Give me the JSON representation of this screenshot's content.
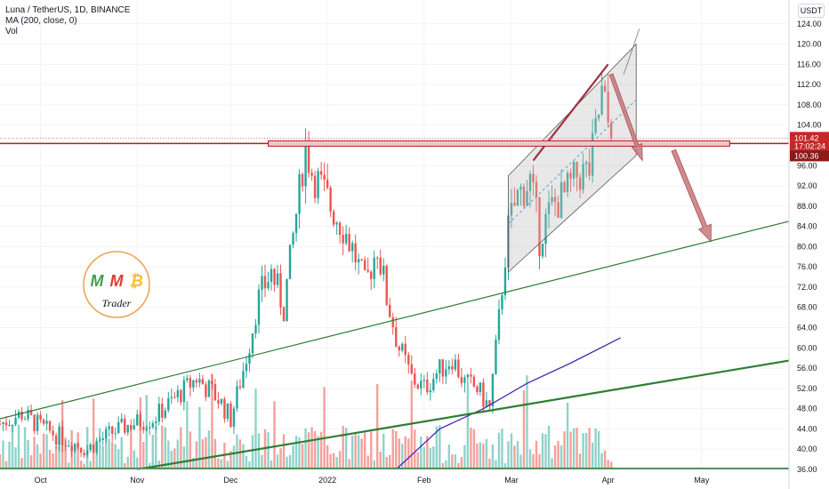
{
  "legend": {
    "symbol": "Luna / TetherUS, 1D, BINANCE",
    "ma": "MA (200, close, 0)",
    "vol": "Vol"
  },
  "currency": "USDT",
  "price_tags": {
    "current": "101.42",
    "countdown": "17:02:24",
    "level": "100.36"
  },
  "colors": {
    "up": "#26a69a",
    "down": "#ef5350",
    "vol_up": "#8fd3c9",
    "vol_down": "#f4a09c",
    "ma": "#3f2bb5",
    "trend": "#2e7d32",
    "resistance": "#b71c1c",
    "channel_fill": "#bdbdbd",
    "arrow": "#c9757a",
    "tag_red": "#c62828"
  },
  "logo": {
    "letters": [
      "M",
      "M",
      "₿"
    ],
    "text": "Trader"
  },
  "chart_data": {
    "type": "candlestick",
    "ylim": [
      36,
      128
    ],
    "y_ticks": [
      "124.00",
      "120.00",
      "116.00",
      "112.00",
      "108.00",
      "104.00",
      "96.00",
      "92.00",
      "88.00",
      "84.00",
      "80.00",
      "76.00",
      "72.00",
      "68.00",
      "64.00",
      "60.00",
      "56.00",
      "52.00",
      "48.00",
      "44.00",
      "40.00",
      "36.00"
    ],
    "x_ticks": [
      "Oct",
      "Nov",
      "Dec",
      "2022",
      "Feb",
      "Mar",
      "Apr",
      "May"
    ],
    "x_tick_dates": [
      "2021-10-01",
      "2021-11-01",
      "2021-12-01",
      "2022-01-01",
      "2022-02-01",
      "2022-03-01",
      "2022-04-01",
      "2022-05-01"
    ],
    "date_range": [
      "2021-09-18",
      "2022-05-29"
    ],
    "series_close": [
      [
        "2021-09-18",
        45
      ],
      [
        "2021-09-25",
        47
      ],
      [
        "2021-10-02",
        44
      ],
      [
        "2021-10-09",
        42
      ],
      [
        "2021-10-16",
        40
      ],
      [
        "2021-10-23",
        43
      ],
      [
        "2021-10-30",
        45
      ],
      [
        "2021-11-06",
        46
      ],
      [
        "2021-11-13",
        50
      ],
      [
        "2021-11-20",
        54
      ],
      [
        "2021-11-27",
        50
      ],
      [
        "2021-12-01",
        46
      ],
      [
        "2021-12-06",
        58
      ],
      [
        "2021-12-10",
        70
      ],
      [
        "2021-12-14",
        75
      ],
      [
        "2021-12-18",
        68
      ],
      [
        "2021-12-21",
        82
      ],
      [
        "2021-12-25",
        100
      ],
      [
        "2021-12-27",
        95
      ],
      [
        "2022-01-02",
        88
      ],
      [
        "2022-01-06",
        84
      ],
      [
        "2022-01-10",
        78
      ],
      [
        "2022-01-13",
        72
      ],
      [
        "2022-01-17",
        80
      ],
      [
        "2022-01-20",
        70
      ],
      [
        "2022-01-24",
        60
      ],
      [
        "2022-01-28",
        54
      ],
      [
        "2022-02-01",
        52
      ],
      [
        "2022-02-05",
        55
      ],
      [
        "2022-02-10",
        58
      ],
      [
        "2022-02-14",
        53
      ],
      [
        "2022-02-18",
        52
      ],
      [
        "2022-02-22",
        48
      ],
      [
        "2022-02-25",
        66
      ],
      [
        "2022-02-28",
        84
      ],
      [
        "2022-03-03",
        90
      ],
      [
        "2022-03-07",
        93
      ],
      [
        "2022-03-10",
        82
      ],
      [
        "2022-03-14",
        88
      ],
      [
        "2022-03-18",
        90
      ],
      [
        "2022-03-22",
        94
      ],
      [
        "2022-03-26",
        95
      ],
      [
        "2022-03-30",
        110
      ],
      [
        "2022-04-02",
        101.42
      ]
    ],
    "ma200": [
      [
        "2022-01-23",
        36
      ],
      [
        "2022-02-06",
        44
      ],
      [
        "2022-02-20",
        48
      ],
      [
        "2022-03-06",
        53
      ],
      [
        "2022-03-20",
        57
      ],
      [
        "2022-04-05",
        62
      ]
    ],
    "horizontal_levels": [
      100.36
    ],
    "trend_lines": [
      {
        "from": [
          "2021-09-18",
          46
        ],
        "to": [
          "2022-05-29",
          85
        ]
      },
      {
        "from": [
          "2021-11-01",
          36
        ],
        "to": [
          "2022-05-29",
          57.5
        ]
      }
    ],
    "channel": {
      "upper": [
        [
          "2022-02-28",
          94
        ],
        [
          "2022-04-10",
          120
        ]
      ],
      "lower": [
        [
          "2022-02-28",
          75
        ],
        [
          "2022-04-10",
          98
        ]
      ]
    }
  }
}
